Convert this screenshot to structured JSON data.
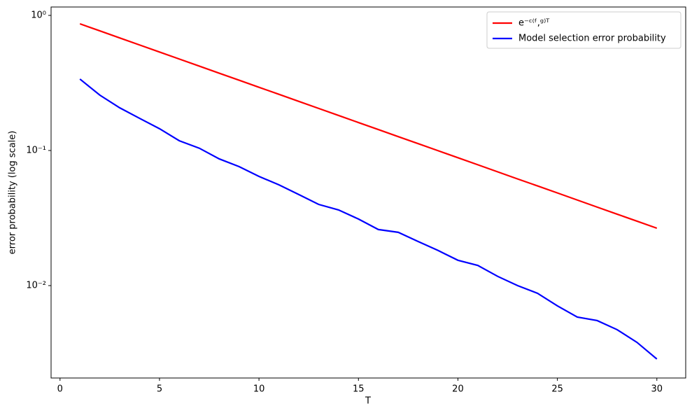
{
  "chart_data": {
    "type": "line",
    "x": [
      1,
      2,
      3,
      4,
      5,
      6,
      7,
      8,
      9,
      10,
      11,
      12,
      13,
      14,
      15,
      16,
      17,
      18,
      19,
      20,
      21,
      22,
      23,
      24,
      25,
      26,
      27,
      28,
      29,
      30
    ],
    "series": [
      {
        "name": "e⁻ᶜ⁽ᶠ,ᵍ⁾ᵀ",
        "color": "#ff0000",
        "values": [
          0.8664,
          0.7683,
          0.6813,
          0.6042,
          0.5358,
          0.4751,
          0.4213,
          0.3736,
          0.3313,
          0.2938,
          0.2606,
          0.2311,
          0.2049,
          0.1817,
          0.1611,
          0.1429,
          0.1267,
          0.1124,
          0.0997,
          0.0884,
          0.0784,
          0.0695,
          0.0616,
          0.0547,
          0.0485,
          0.043,
          0.0381,
          0.0338,
          0.03,
          0.0266
        ]
      },
      {
        "name": "Model selection error probability",
        "color": "#0000ff",
        "values": [
          0.338,
          0.257,
          0.207,
          0.173,
          0.145,
          0.118,
          0.104,
          0.0867,
          0.076,
          0.0643,
          0.0557,
          0.0472,
          0.0399,
          0.0363,
          0.0311,
          0.026,
          0.0248,
          0.0212,
          0.0182,
          0.0154,
          0.0141,
          0.0117,
          0.01,
          0.00877,
          0.00708,
          0.00585,
          0.00551,
          0.00472,
          0.0038,
          0.00286
        ]
      }
    ],
    "xlabel": "T",
    "ylabel": "error probability (log scale)",
    "xlim": [
      -0.45,
      31.45
    ],
    "xticks": [
      0,
      5,
      10,
      15,
      20,
      25,
      30
    ],
    "ylim": [
      0.00207,
      1.154
    ],
    "yscale": "log",
    "yticks": [
      {
        "value": 0.01,
        "label": "10⁻²"
      },
      {
        "value": 0.1,
        "label": "10⁻¹"
      },
      {
        "value": 1,
        "label": "10⁰"
      }
    ],
    "legend": "upper right"
  }
}
